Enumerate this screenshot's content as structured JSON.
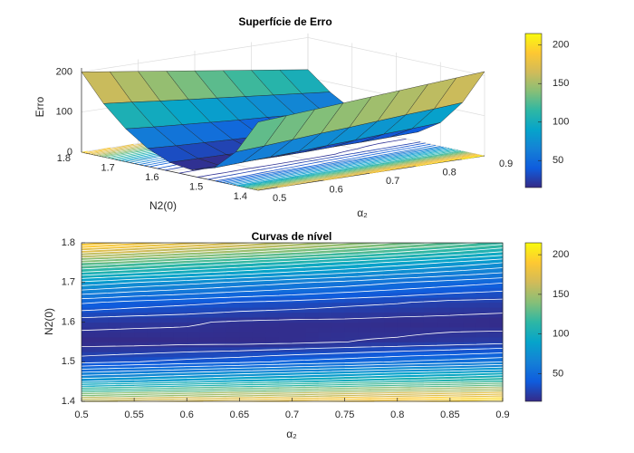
{
  "chart_data": [
    {
      "type": "surface",
      "title": "Superfície de Erro",
      "x_label": "α₂",
      "y_label": "N2(0)",
      "z_label": "Erro",
      "x": [
        0.5,
        0.55,
        0.6,
        0.65,
        0.7,
        0.75,
        0.8,
        0.85,
        0.9
      ],
      "y": [
        1.4,
        1.45,
        1.5,
        1.55,
        1.6,
        1.65,
        1.7,
        1.75,
        1.8
      ],
      "z": [
        [
          170,
          175,
          180,
          185,
          190,
          195,
          200,
          205,
          210
        ],
        [
          84,
          88,
          93,
          98,
          102,
          107,
          112,
          116,
          121
        ],
        [
          32,
          35,
          38,
          41,
          45,
          48,
          52,
          55,
          59
        ],
        [
          15,
          15,
          16,
          16,
          17,
          19,
          20,
          22,
          24
        ],
        [
          22,
          21,
          20,
          18,
          17,
          17,
          16,
          16,
          15
        ],
        [
          45,
          41,
          38,
          35,
          33,
          30,
          28,
          25,
          24
        ],
        [
          82,
          76,
          71,
          66,
          61,
          57,
          52,
          48,
          44
        ],
        [
          133,
          126,
          118,
          111,
          104,
          97,
          90,
          83,
          76
        ],
        [
          200,
          190,
          180,
          170,
          160,
          150,
          140,
          130,
          120
        ]
      ],
      "xlim": [
        0.5,
        0.9
      ],
      "ylim": [
        1.4,
        1.8
      ],
      "zlim": [
        0,
        210
      ],
      "xticks": [
        0.5,
        0.6,
        0.7,
        0.8,
        0.9
      ],
      "yticks": [
        1.4,
        1.5,
        1.6,
        1.7,
        1.8
      ],
      "zticks": [
        0,
        100,
        200
      ],
      "clim": [
        15,
        215
      ],
      "cticks": [
        50,
        100,
        150,
        200
      ],
      "colormap": "parula",
      "grid": true
    },
    {
      "type": "contour",
      "title": "Curvas de nível",
      "x_label": "α₂",
      "y_label": "N2(0)",
      "x": [
        0.5,
        0.55,
        0.6,
        0.65,
        0.7,
        0.75,
        0.8,
        0.85,
        0.9
      ],
      "y": [
        1.4,
        1.45,
        1.5,
        1.55,
        1.6,
        1.65,
        1.7,
        1.75,
        1.8
      ],
      "z": [
        [
          170,
          175,
          180,
          185,
          190,
          195,
          200,
          205,
          210
        ],
        [
          84,
          88,
          93,
          98,
          102,
          107,
          112,
          116,
          121
        ],
        [
          32,
          35,
          38,
          41,
          45,
          48,
          52,
          55,
          59
        ],
        [
          15,
          15,
          16,
          16,
          17,
          19,
          20,
          22,
          24
        ],
        [
          22,
          21,
          20,
          18,
          17,
          17,
          16,
          16,
          15
        ],
        [
          45,
          41,
          38,
          35,
          33,
          30,
          28,
          25,
          24
        ],
        [
          82,
          76,
          71,
          66,
          61,
          57,
          52,
          48,
          44
        ],
        [
          133,
          126,
          118,
          111,
          104,
          97,
          90,
          83,
          76
        ],
        [
          200,
          190,
          180,
          170,
          160,
          150,
          140,
          130,
          120
        ]
      ],
      "xlim": [
        0.5,
        0.9
      ],
      "ylim": [
        1.4,
        1.8
      ],
      "xticks": [
        0.5,
        0.55,
        0.6,
        0.65,
        0.7,
        0.75,
        0.8,
        0.85,
        0.9
      ],
      "yticks": [
        1.4,
        1.5,
        1.6,
        1.7,
        1.8
      ],
      "clim": [
        15,
        215
      ],
      "cticks": [
        50,
        100,
        150,
        200
      ],
      "colormap": "parula",
      "line_color": "#ffffff"
    }
  ]
}
